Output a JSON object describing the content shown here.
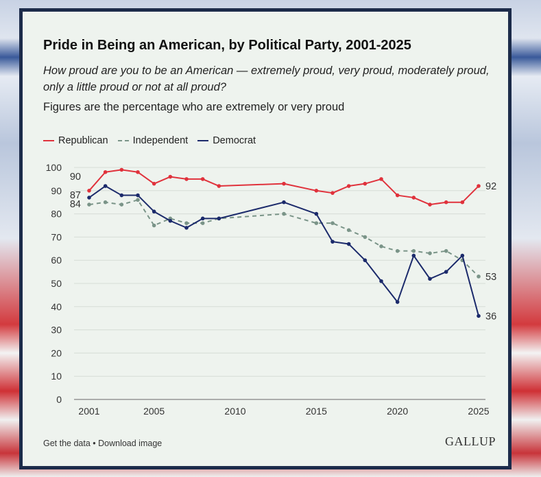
{
  "chart_data": {
    "type": "line",
    "title": "Pride in Being an American, by Political Party, 2001-2025",
    "subtitle": "How proud are you to be an American — extremely proud, very proud, moderately proud, only a little proud or not at all proud?",
    "note": "Figures are the percentage who are extremely or very proud",
    "x": [
      2001,
      2002,
      2003,
      2004,
      2005,
      2006,
      2007,
      2008,
      2009,
      2013,
      2015,
      2016,
      2017,
      2018,
      2019,
      2020,
      2021,
      2022,
      2023,
      2024,
      2025
    ],
    "series": [
      {
        "name": "Republican",
        "color": "#e0323c",
        "dashed": false,
        "values": [
          90,
          98,
          99,
          98,
          93,
          96,
          95,
          95,
          92,
          93,
          90,
          89,
          92,
          93,
          95,
          88,
          87,
          84,
          85,
          85,
          92
        ],
        "start_label": "90",
        "end_label": "92"
      },
      {
        "name": "Independent",
        "color": "#7a9488",
        "dashed": true,
        "values": [
          84,
          85,
          84,
          86,
          75,
          78,
          76,
          76,
          78,
          80,
          76,
          76,
          73,
          70,
          66,
          64,
          64,
          63,
          64,
          60,
          53
        ],
        "start_label": "84",
        "end_label": "53"
      },
      {
        "name": "Democrat",
        "color": "#1b2a6b",
        "dashed": false,
        "values": [
          87,
          92,
          88,
          88,
          81,
          77,
          74,
          78,
          78,
          85,
          80,
          68,
          67,
          60,
          51,
          42,
          62,
          52,
          55,
          62,
          36
        ],
        "start_label": "87",
        "end_label": "36"
      }
    ],
    "xticks": [
      2001,
      2005,
      2010,
      2015,
      2020,
      2025
    ],
    "yticks": [
      0,
      10,
      20,
      30,
      40,
      50,
      60,
      70,
      80,
      90,
      100
    ],
    "ylim": [
      0,
      100
    ],
    "xlim": [
      2001,
      2025
    ],
    "grid": true,
    "legend_position": "top-left"
  },
  "footer": {
    "links": "Get the data • Download image",
    "brand": "GALLUP"
  }
}
